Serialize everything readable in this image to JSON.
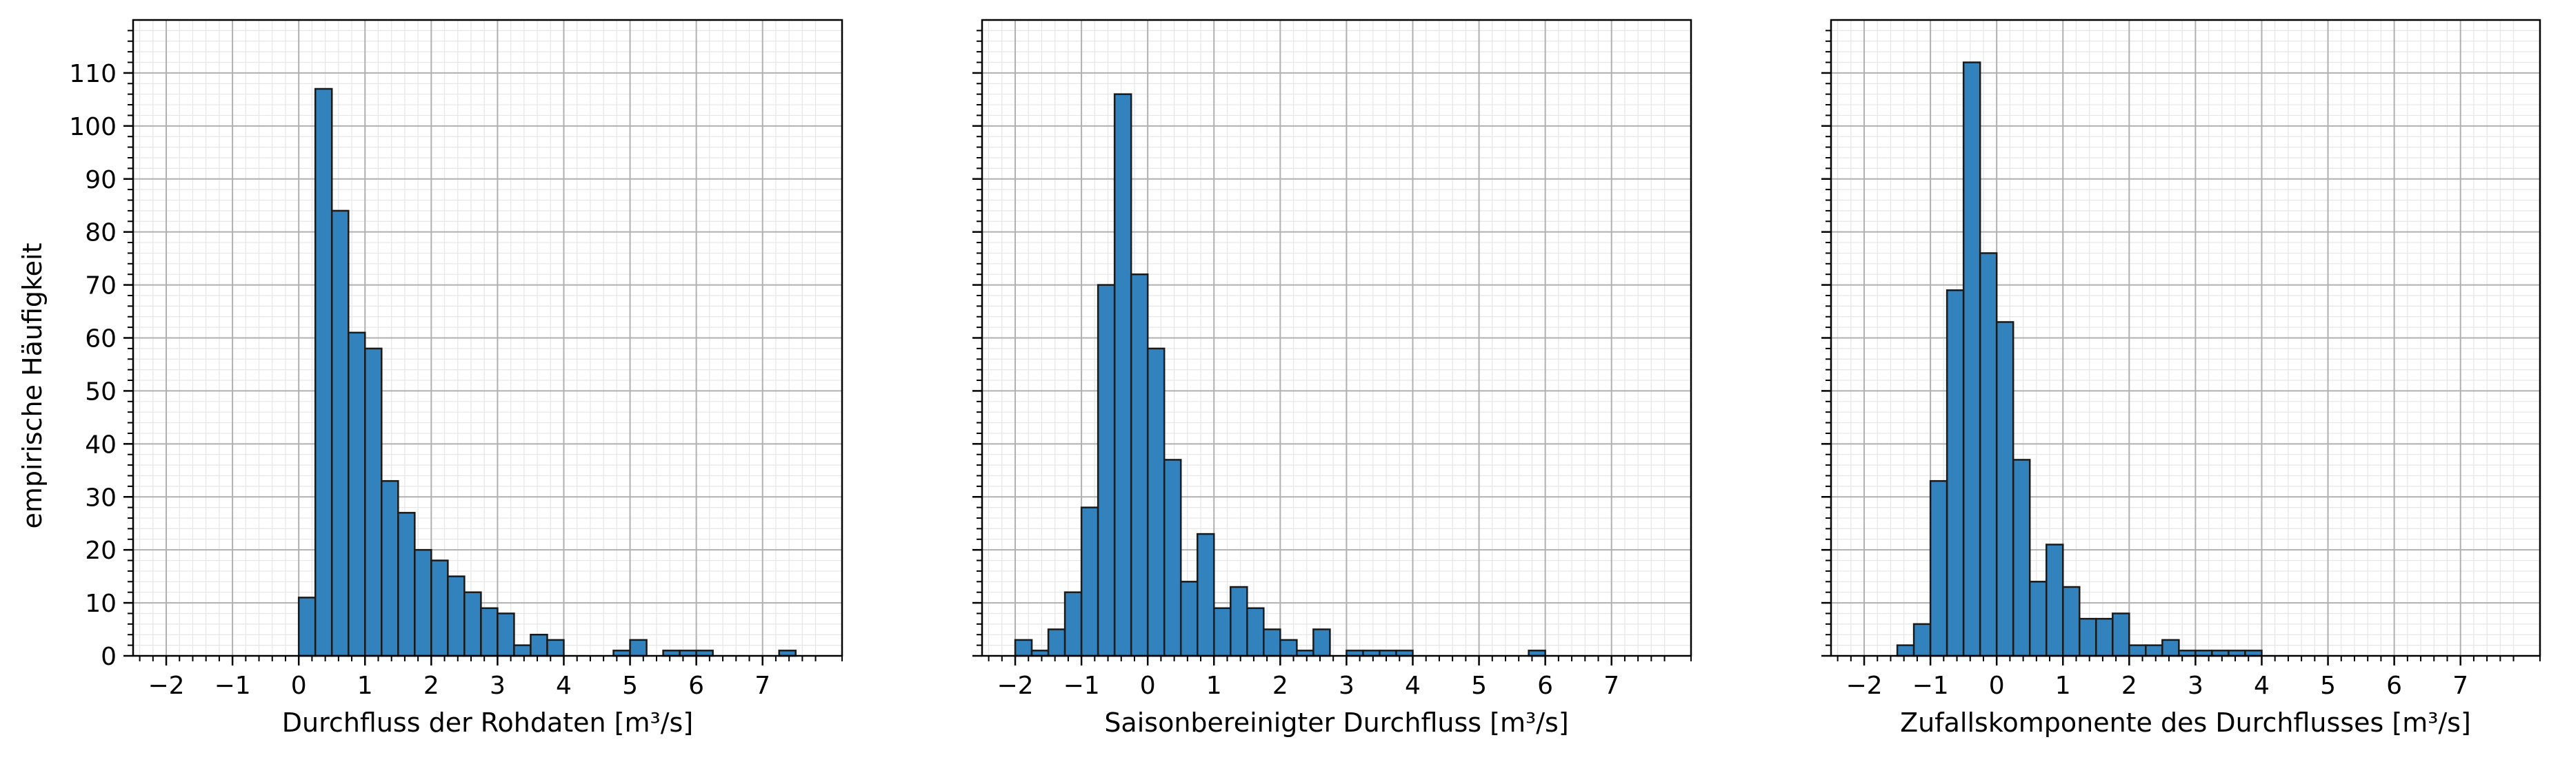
{
  "colors": {
    "bar_fill": "#3182bd",
    "bar_edge": "#1a1a1a",
    "grid_major": "#b0b0b0",
    "grid_minor": "#e6e6e6",
    "axis": "#000000"
  },
  "shared": {
    "ylabel": "empirische Häufigkeit",
    "ylim": [
      0,
      120
    ],
    "y_ticks": [
      0,
      10,
      20,
      30,
      40,
      50,
      60,
      70,
      80,
      90,
      100,
      110
    ],
    "y_tick_labels": [
      "0",
      "10",
      "20",
      "30",
      "40",
      "50",
      "60",
      "70",
      "80",
      "90",
      "100",
      "110"
    ],
    "xlim": [
      -2.5,
      8.2
    ],
    "x_ticks": [
      -2,
      -1,
      0,
      1,
      2,
      3,
      4,
      5,
      6,
      7
    ],
    "x_tick_labels": [
      "−2",
      "−1",
      "0",
      "1",
      "2",
      "3",
      "4",
      "5",
      "6",
      "7"
    ],
    "grid": true,
    "minor_grid": true
  },
  "chart_data": [
    {
      "type": "bar",
      "title": "",
      "xlabel": "Durchfluss der Rohdaten [m³/s]",
      "ylabel": "empirische Häufigkeit",
      "bin_width": 0.25,
      "bins": [
        {
          "x0": 0.0,
          "count": 11
        },
        {
          "x0": 0.25,
          "count": 107
        },
        {
          "x0": 0.5,
          "count": 84
        },
        {
          "x0": 0.75,
          "count": 61
        },
        {
          "x0": 1.0,
          "count": 58
        },
        {
          "x0": 1.25,
          "count": 33
        },
        {
          "x0": 1.5,
          "count": 27
        },
        {
          "x0": 1.75,
          "count": 20
        },
        {
          "x0": 2.0,
          "count": 18
        },
        {
          "x0": 2.25,
          "count": 15
        },
        {
          "x0": 2.5,
          "count": 12
        },
        {
          "x0": 2.75,
          "count": 9
        },
        {
          "x0": 3.0,
          "count": 8
        },
        {
          "x0": 3.25,
          "count": 2
        },
        {
          "x0": 3.5,
          "count": 4
        },
        {
          "x0": 3.75,
          "count": 3
        },
        {
          "x0": 4.0,
          "count": 0
        },
        {
          "x0": 4.25,
          "count": 0
        },
        {
          "x0": 4.5,
          "count": 0
        },
        {
          "x0": 4.75,
          "count": 1
        },
        {
          "x0": 5.0,
          "count": 3
        },
        {
          "x0": 5.25,
          "count": 0
        },
        {
          "x0": 5.5,
          "count": 1
        },
        {
          "x0": 5.75,
          "count": 1
        },
        {
          "x0": 6.0,
          "count": 1
        },
        {
          "x0": 6.25,
          "count": 0
        },
        {
          "x0": 6.5,
          "count": 0
        },
        {
          "x0": 6.75,
          "count": 0
        },
        {
          "x0": 7.0,
          "count": 0
        },
        {
          "x0": 7.25,
          "count": 1
        }
      ]
    },
    {
      "type": "bar",
      "title": "",
      "xlabel": "Saisonbereinigter Durchfluss [m³/s]",
      "ylabel": "",
      "bin_width": 0.25,
      "bins": [
        {
          "x0": -2.0,
          "count": 3
        },
        {
          "x0": -1.75,
          "count": 1
        },
        {
          "x0": -1.5,
          "count": 5
        },
        {
          "x0": -1.25,
          "count": 12
        },
        {
          "x0": -1.0,
          "count": 28
        },
        {
          "x0": -0.75,
          "count": 70
        },
        {
          "x0": -0.5,
          "count": 106
        },
        {
          "x0": -0.25,
          "count": 72
        },
        {
          "x0": 0.0,
          "count": 58
        },
        {
          "x0": 0.25,
          "count": 37
        },
        {
          "x0": 0.5,
          "count": 14
        },
        {
          "x0": 0.75,
          "count": 23
        },
        {
          "x0": 1.0,
          "count": 9
        },
        {
          "x0": 1.25,
          "count": 13
        },
        {
          "x0": 1.5,
          "count": 9
        },
        {
          "x0": 1.75,
          "count": 5
        },
        {
          "x0": 2.0,
          "count": 3
        },
        {
          "x0": 2.25,
          "count": 1
        },
        {
          "x0": 2.5,
          "count": 5
        },
        {
          "x0": 2.75,
          "count": 0
        },
        {
          "x0": 3.0,
          "count": 1
        },
        {
          "x0": 3.25,
          "count": 1
        },
        {
          "x0": 3.5,
          "count": 1
        },
        {
          "x0": 3.75,
          "count": 1
        },
        {
          "x0": 4.0,
          "count": 0
        },
        {
          "x0": 4.25,
          "count": 0
        },
        {
          "x0": 4.5,
          "count": 0
        },
        {
          "x0": 4.75,
          "count": 0
        },
        {
          "x0": 5.0,
          "count": 0
        },
        {
          "x0": 5.25,
          "count": 0
        },
        {
          "x0": 5.5,
          "count": 0
        },
        {
          "x0": 5.75,
          "count": 1
        }
      ]
    },
    {
      "type": "bar",
      "title": "",
      "xlabel": "Zufallskomponente des Durchflusses [m³/s]",
      "ylabel": "",
      "bin_width": 0.25,
      "bins": [
        {
          "x0": -1.5,
          "count": 2
        },
        {
          "x0": -1.25,
          "count": 6
        },
        {
          "x0": -1.0,
          "count": 33
        },
        {
          "x0": -0.75,
          "count": 69
        },
        {
          "x0": -0.5,
          "count": 112
        },
        {
          "x0": -0.25,
          "count": 76
        },
        {
          "x0": 0.0,
          "count": 63
        },
        {
          "x0": 0.25,
          "count": 37
        },
        {
          "x0": 0.5,
          "count": 14
        },
        {
          "x0": 0.75,
          "count": 21
        },
        {
          "x0": 1.0,
          "count": 13
        },
        {
          "x0": 1.25,
          "count": 7
        },
        {
          "x0": 1.5,
          "count": 7
        },
        {
          "x0": 1.75,
          "count": 8
        },
        {
          "x0": 2.0,
          "count": 2
        },
        {
          "x0": 2.25,
          "count": 2
        },
        {
          "x0": 2.5,
          "count": 3
        },
        {
          "x0": 2.75,
          "count": 1
        },
        {
          "x0": 3.0,
          "count": 1
        },
        {
          "x0": 3.25,
          "count": 1
        },
        {
          "x0": 3.5,
          "count": 1
        },
        {
          "x0": 3.75,
          "count": 1
        }
      ]
    }
  ]
}
